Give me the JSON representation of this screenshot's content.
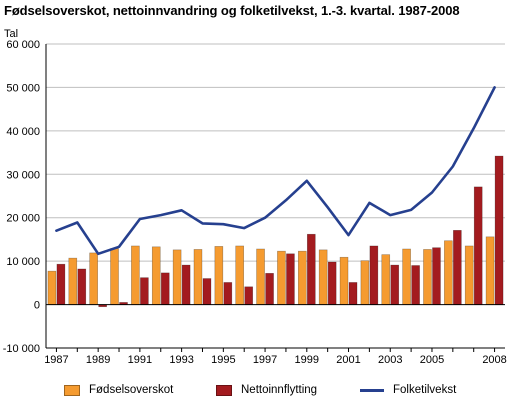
{
  "title": "Fødselsoverskot, nettoinnvandring og folketilvekst, 1.-3. kvartal. 1987-2008",
  "colors": {
    "fodsel": "#f59b30",
    "netto": "#a31b1f",
    "folk": "#26408f",
    "grid": "#bfbfbf"
  },
  "chart_data": {
    "type": "bar",
    "title": "Fødselsoverskot, nettoinnvandring og folketilvekst, 1.-3. kvartal. 1987-2008",
    "ylabel": "Tal",
    "xlabel": "",
    "ylim": [
      -10000,
      60000
    ],
    "yticks": [
      -10000,
      0,
      10000,
      20000,
      30000,
      40000,
      50000,
      60000
    ],
    "ytick_labels": [
      "-10 000",
      "0",
      "10 000",
      "20 000",
      "30 000",
      "40 000",
      "50 000",
      "60 000"
    ],
    "grid": true,
    "legend_position": "bottom",
    "categories": [
      "1987",
      "1988",
      "1989",
      "1990",
      "1991",
      "1992",
      "1993",
      "1994",
      "1995",
      "1996",
      "1997",
      "1998",
      "1999",
      "2000",
      "2001",
      "2002",
      "2003",
      "2004",
      "2005",
      "2006",
      "2007",
      "2008"
    ],
    "xtick_labels": [
      "1987",
      "",
      "1989",
      "",
      "1991",
      "",
      "1993",
      "",
      "1995",
      "",
      "1997",
      "",
      "1999",
      "",
      "2001",
      "",
      "2003",
      "",
      "2005",
      "",
      "",
      "2008"
    ],
    "series": [
      {
        "name": "Fødselsoverskot",
        "type": "bar",
        "color_key": "fodsel",
        "values": [
          7700,
          10700,
          11900,
          12900,
          13500,
          13300,
          12600,
          12700,
          13400,
          13500,
          12800,
          12300,
          12300,
          12600,
          10900,
          10100,
          11500,
          12800,
          12700,
          14700,
          13500,
          15600
        ]
      },
      {
        "name": "Nettoinnflytting",
        "type": "bar",
        "color_key": "netto",
        "values": [
          9300,
          8200,
          -500,
          500,
          6200,
          7300,
          9100,
          6000,
          5100,
          4100,
          7200,
          11700,
          16200,
          9800,
          5100,
          13500,
          9100,
          9000,
          13100,
          17100,
          27100,
          34200
        ]
      },
      {
        "name": "Folketilvekst",
        "type": "line",
        "color_key": "folk",
        "values": [
          17000,
          18900,
          11700,
          13300,
          19700,
          20600,
          21700,
          18700,
          18500,
          17600,
          20000,
          24000,
          28500,
          22400,
          16000,
          23400,
          20600,
          21800,
          25800,
          31800,
          40600,
          50000
        ]
      }
    ]
  },
  "legend": {
    "fodsel": "Fødselsoverskot",
    "netto": "Nettoinnflytting",
    "folk": "Folketilvekst"
  }
}
